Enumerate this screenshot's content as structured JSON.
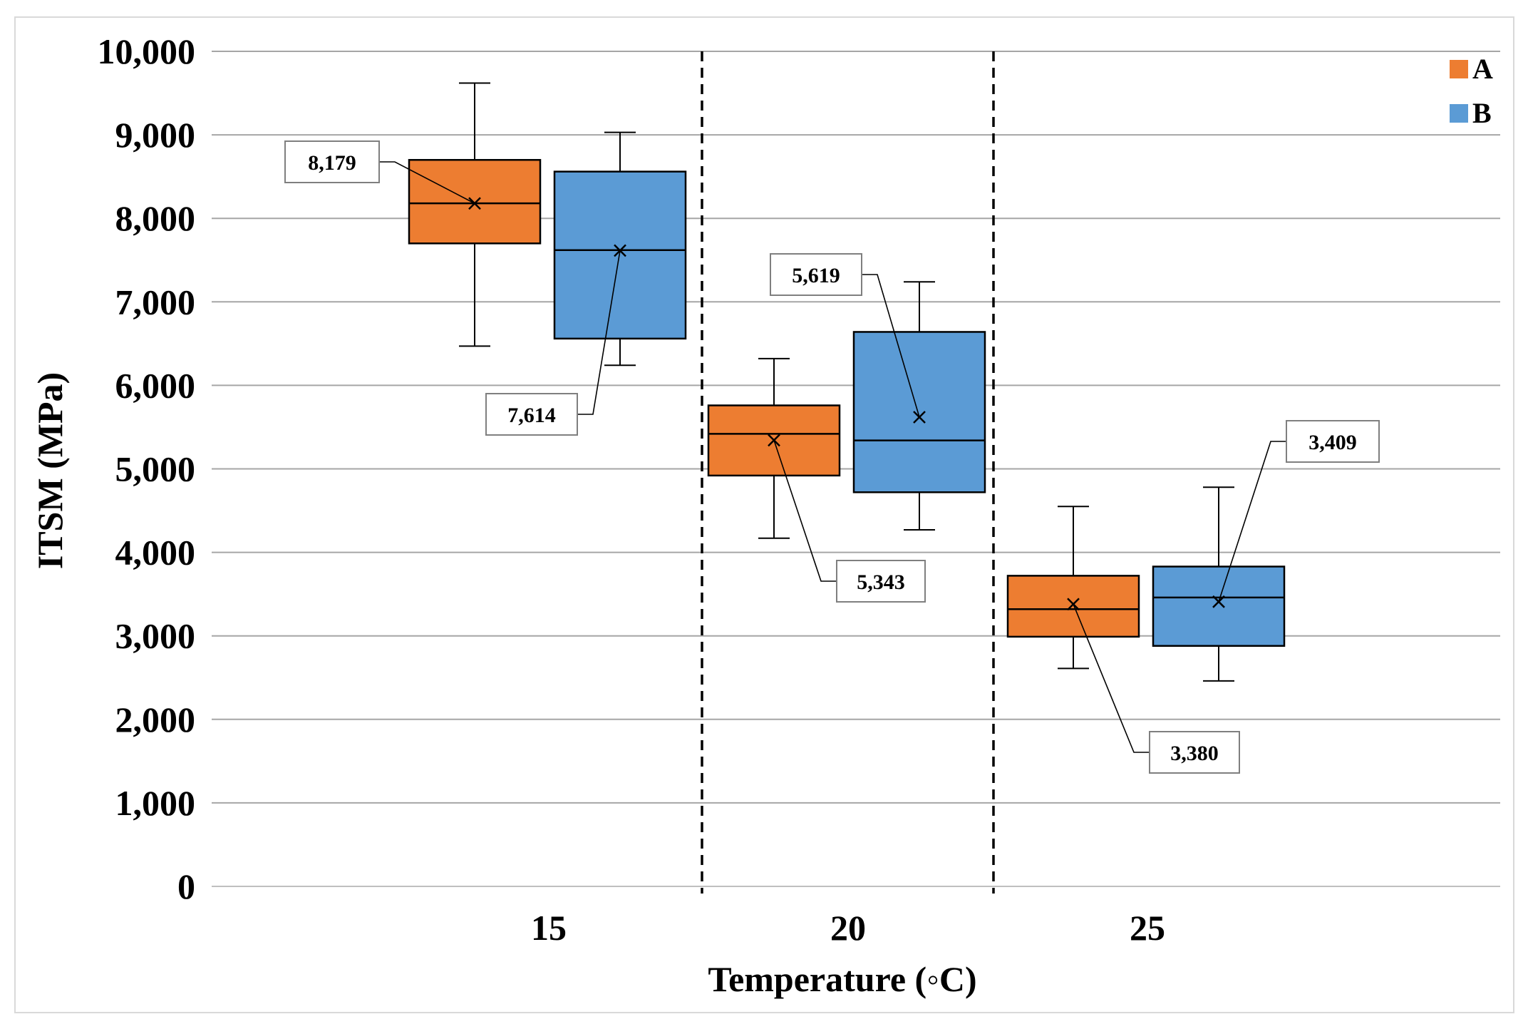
{
  "chart_data": {
    "type": "box",
    "title": "",
    "xlabel": "Temperature (◦C)",
    "ylabel": "ITSM (MPa)",
    "ylim": [
      0,
      10000
    ],
    "yticks": [
      0,
      1000,
      2000,
      3000,
      4000,
      5000,
      6000,
      7000,
      8000,
      9000,
      10000
    ],
    "ytick_labels": [
      "0",
      "1,000",
      "2,000",
      "3,000",
      "4,000",
      "5,000",
      "6,000",
      "7,000",
      "8,000",
      "9,000",
      "10,000"
    ],
    "categories": [
      "15",
      "20",
      "25"
    ],
    "grid": true,
    "legend_position": "top-right",
    "colors": {
      "A": "#ed7d31",
      "B": "#5b9bd5"
    },
    "series": [
      {
        "name": "A",
        "boxes": [
          {
            "category": "15",
            "min": 6470,
            "q1": 7700,
            "median": 8180,
            "q3": 8700,
            "max": 9620,
            "mean": 8179,
            "mean_label": "8,179"
          },
          {
            "category": "20",
            "min": 4170,
            "q1": 4920,
            "median": 5420,
            "q3": 5760,
            "max": 6320,
            "mean": 5343,
            "mean_label": "5,343"
          },
          {
            "category": "25",
            "min": 2610,
            "q1": 2990,
            "median": 3320,
            "q3": 3720,
            "max": 4550,
            "mean": 3380,
            "mean_label": "3,380"
          }
        ]
      },
      {
        "name": "B",
        "boxes": [
          {
            "category": "15",
            "min": 6240,
            "q1": 6560,
            "median": 7620,
            "q3": 8560,
            "max": 9030,
            "mean": 7614,
            "mean_label": "7,614"
          },
          {
            "category": "20",
            "min": 4270,
            "q1": 4720,
            "median": 5340,
            "q3": 6640,
            "max": 7240,
            "mean": 5619,
            "mean_label": "5,619"
          },
          {
            "category": "25",
            "min": 2460,
            "q1": 2880,
            "median": 3460,
            "q3": 3830,
            "max": 4780,
            "mean": 3409,
            "mean_label": "3,409"
          }
        ]
      }
    ]
  }
}
